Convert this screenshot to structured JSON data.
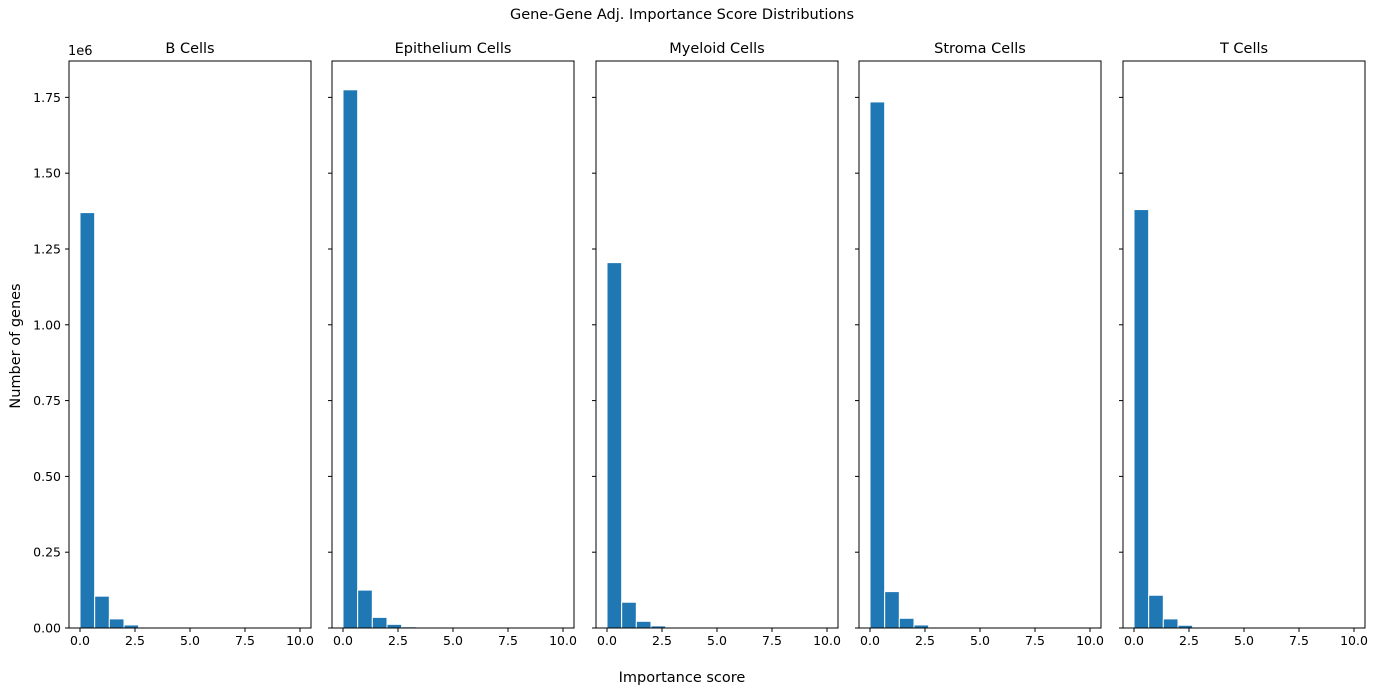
{
  "figure": {
    "suptitle": "Gene-Gene Adj. Importance Score Distributions",
    "xlabel": "Importance score",
    "ylabel": "Number of genes",
    "y_offset_text": "1e6",
    "bar_color": "#1f77b4"
  },
  "chart_data": [
    {
      "type": "bar",
      "title": "B Cells",
      "bin_edges": [
        0,
        0.667,
        1.333,
        2.0,
        2.667,
        3.333
      ],
      "values": [
        1370000,
        105000,
        30000,
        10000,
        3000
      ],
      "xlim": [
        -0.5,
        10.5
      ],
      "ylim": [
        0,
        1870000
      ],
      "xticks": [
        0,
        2.5,
        5,
        7.5,
        10
      ],
      "xtick_labels": [
        "0.0",
        "2.5",
        "5.0",
        "7.5",
        "10.0"
      ],
      "yticks": [
        0,
        250000,
        500000,
        750000,
        1000000,
        1250000,
        1500000,
        1750000
      ],
      "ytick_labels": [
        "0.00",
        "0.25",
        "0.50",
        "0.75",
        "1.00",
        "1.25",
        "1.50",
        "1.75"
      ]
    },
    {
      "type": "bar",
      "title": "Epithelium Cells",
      "bin_edges": [
        0,
        0.667,
        1.333,
        2.0,
        2.667,
        3.333
      ],
      "values": [
        1775000,
        125000,
        35000,
        12000,
        4000
      ],
      "xlim": [
        -0.5,
        10.5
      ],
      "ylim": [
        0,
        1870000
      ],
      "xticks": [
        0,
        2.5,
        5,
        7.5,
        10
      ],
      "xtick_labels": [
        "0.0",
        "2.5",
        "5.0",
        "7.5",
        "10.0"
      ],
      "yticks": [
        0,
        250000,
        500000,
        750000,
        1000000,
        1250000,
        1500000,
        1750000
      ],
      "ytick_labels": []
    },
    {
      "type": "bar",
      "title": "Myeloid Cells",
      "bin_edges": [
        0,
        0.667,
        1.333,
        2.0,
        2.667,
        3.333
      ],
      "values": [
        1205000,
        85000,
        22000,
        7000,
        2000
      ],
      "xlim": [
        -0.5,
        10.5
      ],
      "ylim": [
        0,
        1870000
      ],
      "xticks": [
        0,
        2.5,
        5,
        7.5,
        10
      ],
      "xtick_labels": [
        "0.0",
        "2.5",
        "5.0",
        "7.5",
        "10.0"
      ],
      "yticks": [
        0,
        250000,
        500000,
        750000,
        1000000,
        1250000,
        1500000,
        1750000
      ],
      "ytick_labels": []
    },
    {
      "type": "bar",
      "title": "Stroma Cells",
      "bin_edges": [
        0,
        0.667,
        1.333,
        2.0,
        2.667,
        3.333
      ],
      "values": [
        1735000,
        120000,
        32000,
        10000,
        3000
      ],
      "xlim": [
        -0.5,
        10.5
      ],
      "ylim": [
        0,
        1870000
      ],
      "xticks": [
        0,
        2.5,
        5,
        7.5,
        10
      ],
      "xtick_labels": [
        "0.0",
        "2.5",
        "5.0",
        "7.5",
        "10.0"
      ],
      "yticks": [
        0,
        250000,
        500000,
        750000,
        1000000,
        1250000,
        1500000,
        1750000
      ],
      "ytick_labels": []
    },
    {
      "type": "bar",
      "title": "T Cells",
      "bin_edges": [
        0,
        0.667,
        1.333,
        2.0,
        2.667,
        3.333
      ],
      "values": [
        1380000,
        108000,
        30000,
        9000,
        3000
      ],
      "xlim": [
        -0.5,
        10.5
      ],
      "ylim": [
        0,
        1870000
      ],
      "xticks": [
        0,
        2.5,
        5,
        7.5,
        10
      ],
      "xtick_labels": [
        "0.0",
        "2.5",
        "5.0",
        "7.5",
        "10.0"
      ],
      "yticks": [
        0,
        250000,
        500000,
        750000,
        1000000,
        1250000,
        1500000,
        1750000
      ],
      "ytick_labels": []
    }
  ]
}
